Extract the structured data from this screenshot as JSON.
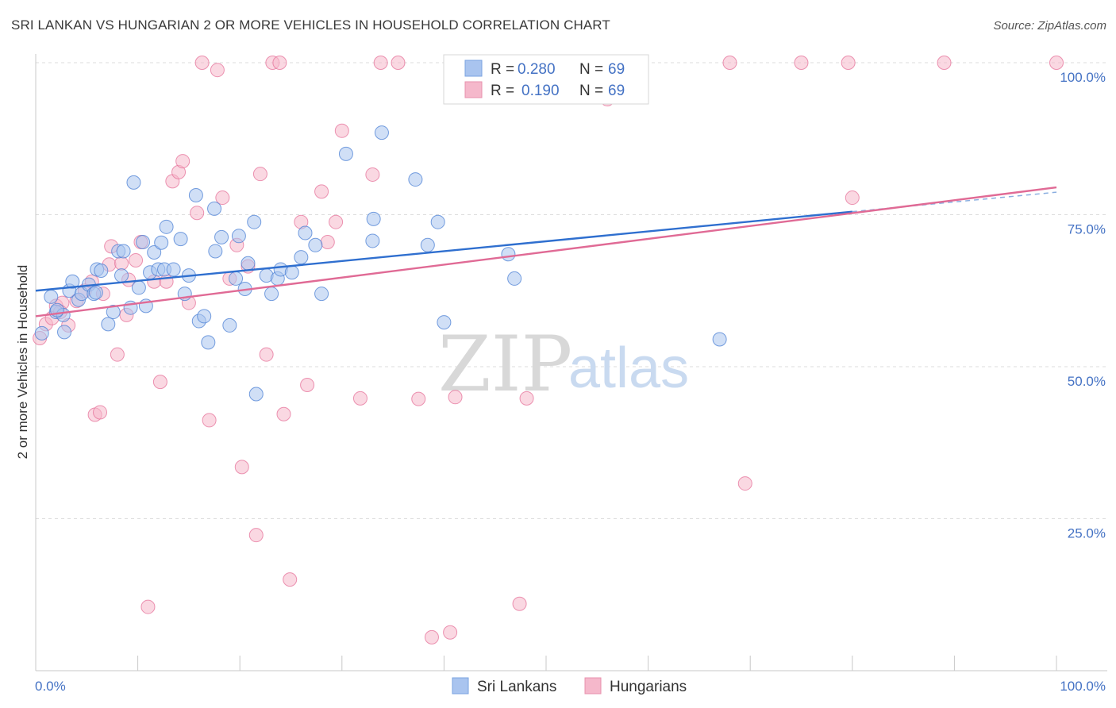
{
  "header": {
    "title": "SRI LANKAN VS HUNGARIAN 2 OR MORE VEHICLES IN HOUSEHOLD CORRELATION CHART",
    "source": "Source: ZipAtlas.com"
  },
  "watermark": {
    "zip": "ZIP",
    "atlas": "atlas"
  },
  "legend": {
    "rows": [
      {
        "r_label": "R =",
        "r_value": "0.280",
        "n_label": "N =",
        "n_value": "69",
        "color": "#a9c4ef"
      },
      {
        "r_label": "R =",
        "r_value": "0.190",
        "n_label": "N =",
        "n_value": "69",
        "color": "#f5b8cb"
      }
    ]
  },
  "bottom_legend": [
    {
      "label": "Sri Lankans",
      "color": "#a9c4ef"
    },
    {
      "label": "Hungarians",
      "color": "#f5b8cb"
    }
  ],
  "chart_data": {
    "type": "scatter",
    "title": "SRI LANKAN VS HUNGARIAN 2 OR MORE VEHICLES IN HOUSEHOLD CORRELATION CHART",
    "xlabel": "",
    "ylabel": "2 or more Vehicles in Household",
    "xlim": [
      0,
      100
    ],
    "ylim": [
      0,
      100
    ],
    "x_tick_labels": [
      "0.0%",
      "100.0%"
    ],
    "y_ticks": [
      25,
      50,
      75,
      100
    ],
    "y_tick_labels": [
      "25.0%",
      "50.0%",
      "75.0%",
      "100.0%"
    ],
    "grid": true,
    "legend_position": "top-center",
    "series": [
      {
        "name": "Sri Lankans",
        "color": "#4a7fd4",
        "fill": "#a9c4ef",
        "trend": {
          "x0": 0,
          "y0": 62.5,
          "x1": 80,
          "y1": 75.5,
          "x_dash_end": 100,
          "y_dash_end": 78.7
        },
        "points": [
          [
            0.6,
            55.5
          ],
          [
            1.5,
            61.5
          ],
          [
            2,
            59
          ],
          [
            2.7,
            58.5
          ],
          [
            2.8,
            55.7
          ],
          [
            3.3,
            62.5
          ],
          [
            3.6,
            64
          ],
          [
            4.2,
            61
          ],
          [
            4.5,
            62
          ],
          [
            5.2,
            63.5
          ],
          [
            5.7,
            62
          ],
          [
            6,
            66
          ],
          [
            6.4,
            65.8
          ],
          [
            7.1,
            57
          ],
          [
            7.6,
            59
          ],
          [
            8.1,
            69
          ],
          [
            8.4,
            65
          ],
          [
            8.6,
            69
          ],
          [
            9.3,
            59.7
          ],
          [
            9.6,
            80.3
          ],
          [
            10.1,
            63
          ],
          [
            10.5,
            70.5
          ],
          [
            10.8,
            60
          ],
          [
            11.2,
            65.5
          ],
          [
            11.6,
            68.8
          ],
          [
            12,
            66
          ],
          [
            12.6,
            66
          ],
          [
            12.8,
            73
          ],
          [
            13.5,
            66
          ],
          [
            14.2,
            71
          ],
          [
            14.6,
            62
          ],
          [
            15,
            65
          ],
          [
            15.7,
            78.2
          ],
          [
            16,
            57.5
          ],
          [
            16.5,
            58.3
          ],
          [
            16.9,
            54
          ],
          [
            17.5,
            76
          ],
          [
            17.6,
            69
          ],
          [
            18.2,
            71.3
          ],
          [
            19,
            56.8
          ],
          [
            19.6,
            64.5
          ],
          [
            19.9,
            71.5
          ],
          [
            20.5,
            62.8
          ],
          [
            20.8,
            67
          ],
          [
            21.4,
            73.8
          ],
          [
            21.6,
            45.5
          ],
          [
            22.6,
            65
          ],
          [
            23.1,
            62
          ],
          [
            23.7,
            64.5
          ],
          [
            24,
            66
          ],
          [
            26,
            68
          ],
          [
            26.4,
            72
          ],
          [
            27.4,
            70
          ],
          [
            28,
            62
          ],
          [
            30.4,
            85
          ],
          [
            33,
            70.7
          ],
          [
            33.1,
            74.3
          ],
          [
            33.9,
            88.5
          ],
          [
            37.2,
            80.8
          ],
          [
            38.4,
            70
          ],
          [
            39.4,
            73.8
          ],
          [
            40,
            57.3
          ],
          [
            46.3,
            68.5
          ],
          [
            46.9,
            64.5
          ],
          [
            67,
            54.5
          ],
          [
            2.1,
            59.3
          ],
          [
            5.9,
            62.2
          ],
          [
            12.3,
            70.4
          ],
          [
            25.1,
            65.5
          ]
        ]
      },
      {
        "name": "Hungarians",
        "color": "#e5729a",
        "fill": "#f5b8cb",
        "trend": {
          "x0": 0,
          "y0": 58.3,
          "x1": 100,
          "y1": 79.5
        },
        "points": [
          [
            0.4,
            54.7
          ],
          [
            1,
            57
          ],
          [
            1.6,
            58
          ],
          [
            2,
            60
          ],
          [
            2.6,
            60.5
          ],
          [
            3.2,
            56.8
          ],
          [
            4,
            60.8
          ],
          [
            4.8,
            62.5
          ],
          [
            5.5,
            64
          ],
          [
            5.8,
            42.1
          ],
          [
            6.3,
            42.5
          ],
          [
            6.6,
            62
          ],
          [
            7.2,
            66.8
          ],
          [
            7.4,
            69.8
          ],
          [
            8,
            52
          ],
          [
            8.4,
            67
          ],
          [
            8.9,
            58.5
          ],
          [
            9.1,
            64.3
          ],
          [
            9.8,
            67.5
          ],
          [
            10.3,
            70.5
          ],
          [
            11,
            10.5
          ],
          [
            11.6,
            64
          ],
          [
            12.2,
            47.5
          ],
          [
            12.8,
            64
          ],
          [
            13.4,
            80.5
          ],
          [
            14,
            82
          ],
          [
            14.4,
            83.8
          ],
          [
            15,
            60.5
          ],
          [
            15.8,
            75.3
          ],
          [
            16.3,
            100
          ],
          [
            17,
            41.2
          ],
          [
            17.8,
            98.8
          ],
          [
            18.3,
            77.8
          ],
          [
            19,
            64.5
          ],
          [
            19.7,
            70
          ],
          [
            20.2,
            33.5
          ],
          [
            20.8,
            66.5
          ],
          [
            21.6,
            22.3
          ],
          [
            22,
            81.7
          ],
          [
            22.6,
            52
          ],
          [
            23.2,
            100
          ],
          [
            23.9,
            100
          ],
          [
            24.3,
            42.2
          ],
          [
            24.9,
            15
          ],
          [
            26,
            73.8
          ],
          [
            26.6,
            47
          ],
          [
            28,
            78.8
          ],
          [
            28.6,
            70.5
          ],
          [
            29.4,
            73.8
          ],
          [
            30,
            88.8
          ],
          [
            31.8,
            44.8
          ],
          [
            33,
            81.6
          ],
          [
            33.8,
            100
          ],
          [
            35.5,
            100
          ],
          [
            37.5,
            44.7
          ],
          [
            38.8,
            5.5
          ],
          [
            40.6,
            6.3
          ],
          [
            41.1,
            45
          ],
          [
            47.4,
            11
          ],
          [
            48.1,
            44.8
          ],
          [
            56,
            94
          ],
          [
            68,
            100
          ],
          [
            69.5,
            30.8
          ],
          [
            75,
            100
          ],
          [
            79.6,
            100
          ],
          [
            80,
            77.8
          ],
          [
            89,
            100
          ],
          [
            100,
            100
          ],
          [
            2.4,
            59
          ]
        ]
      }
    ]
  }
}
